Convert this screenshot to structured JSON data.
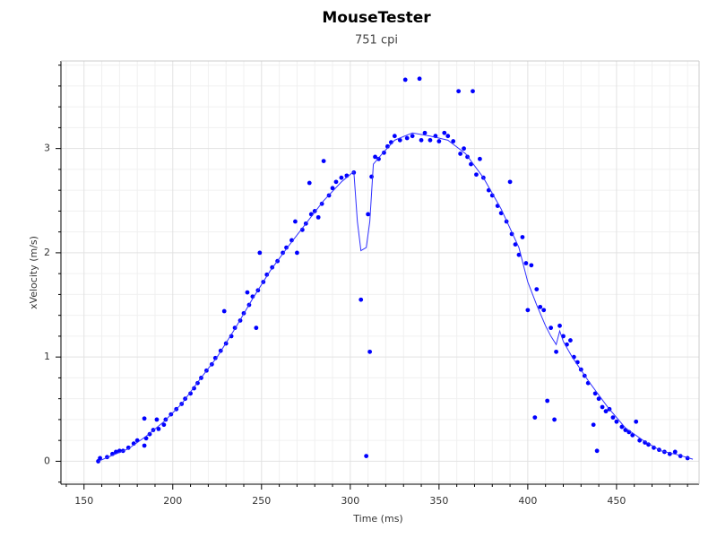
{
  "chart_data": {
    "type": "scatter",
    "title": "MouseTester",
    "subtitle": "751 cpi",
    "x_label": "Time (ms)",
    "y_label": "xVelocity (m/s)",
    "xlim": [
      137,
      496.5
    ],
    "ylim": [
      -0.22,
      3.84
    ],
    "xticks": [
      150,
      200,
      250,
      300,
      350,
      400,
      450
    ],
    "yticks": [
      0,
      1,
      2,
      3
    ],
    "xminorticks": [
      140,
      160,
      170,
      180,
      190,
      210,
      220,
      230,
      240,
      260,
      270,
      280,
      290,
      310,
      320,
      330,
      340,
      360,
      370,
      380,
      390,
      410,
      420,
      430,
      440,
      460,
      470,
      480,
      490
    ],
    "yminorticks": [
      -0.2,
      0.2,
      0.4,
      0.6,
      0.8,
      1.2,
      1.4,
      1.6,
      1.8,
      2.2,
      2.4,
      2.6,
      2.8,
      3.2,
      3.4,
      3.6,
      3.8
    ],
    "grid": true,
    "series": [
      {
        "mode": "markers",
        "color": "#0000ff",
        "x": [
          158,
          159,
          163,
          166,
          168,
          170,
          172,
          175,
          178,
          180,
          184,
          184,
          185,
          187,
          189,
          191,
          192,
          195,
          196,
          199,
          202,
          205,
          207,
          210,
          212,
          214,
          216,
          219,
          222,
          224,
          227,
          229,
          230,
          233,
          235,
          238,
          240,
          242,
          243,
          245,
          247,
          248,
          249,
          251,
          253,
          256,
          259,
          262,
          264,
          267,
          269,
          270,
          273,
          275,
          277,
          278,
          280,
          282,
          284,
          285,
          288,
          290,
          292,
          295,
          298,
          302,
          306,
          309,
          310,
          311,
          312,
          314,
          316,
          319,
          321,
          323,
          325,
          328,
          331,
          332,
          335,
          339,
          340,
          342,
          345,
          348,
          350,
          353,
          355,
          358,
          361,
          362,
          364,
          366,
          368,
          369,
          371,
          373,
          375,
          378,
          380,
          383,
          385,
          388,
          390,
          391,
          393,
          395,
          397,
          399,
          400,
          402,
          404,
          405,
          407,
          409,
          411,
          413,
          415,
          416,
          418,
          420,
          422,
          424,
          426,
          428,
          430,
          432,
          434,
          437,
          438,
          439,
          440,
          442,
          444,
          446,
          448,
          450,
          453,
          455,
          457,
          459,
          461,
          463,
          466,
          468,
          471,
          474,
          477,
          480,
          483,
          486,
          490
        ],
        "values": [
          0,
          0.03,
          0.04,
          0.07,
          0.09,
          0.1,
          0.1,
          0.13,
          0.17,
          0.2,
          0.41,
          0.15,
          0.22,
          0.26,
          0.3,
          0.4,
          0.31,
          0.35,
          0.4,
          0.45,
          0.5,
          0.55,
          0.6,
          0.65,
          0.7,
          0.75,
          0.8,
          0.87,
          0.93,
          0.99,
          1.06,
          1.44,
          1.13,
          1.2,
          1.28,
          1.35,
          1.42,
          1.62,
          1.5,
          1.58,
          1.28,
          1.64,
          2.0,
          1.72,
          1.79,
          1.86,
          1.92,
          2.0,
          2.05,
          2.12,
          2.3,
          2.0,
          2.22,
          2.28,
          2.67,
          2.37,
          2.4,
          2.34,
          2.47,
          2.88,
          2.55,
          2.62,
          2.68,
          2.72,
          2.74,
          2.77,
          1.55,
          0.05,
          2.37,
          1.05,
          2.73,
          2.92,
          2.9,
          2.96,
          3.02,
          3.06,
          3.12,
          3.08,
          3.66,
          3.1,
          3.12,
          3.67,
          3.08,
          3.15,
          3.08,
          3.12,
          3.07,
          3.15,
          3.12,
          3.07,
          3.55,
          2.95,
          3.0,
          2.92,
          2.85,
          3.55,
          2.75,
          2.9,
          2.72,
          2.6,
          2.55,
          2.45,
          2.38,
          2.3,
          2.68,
          2.18,
          2.08,
          1.98,
          2.15,
          1.9,
          1.45,
          1.88,
          0.42,
          1.65,
          1.48,
          1.45,
          0.58,
          1.28,
          0.4,
          1.05,
          1.3,
          1.2,
          1.12,
          1.16,
          1.0,
          0.95,
          0.88,
          0.82,
          0.75,
          0.35,
          0.65,
          0.1,
          0.6,
          0.52,
          0.48,
          0.5,
          0.42,
          0.38,
          0.33,
          0.3,
          0.28,
          0.25,
          0.38,
          0.2,
          0.18,
          0.16,
          0.13,
          0.11,
          0.09,
          0.07,
          0.09,
          0.05,
          0.03
        ]
      },
      {
        "mode": "lines",
        "color": "#3030ff",
        "x": [
          158,
          165,
          175,
          185,
          195,
          205,
          215,
          225,
          235,
          245,
          255,
          265,
          275,
          285,
          295,
          302,
          304,
          306,
          309,
          311,
          313,
          318,
          325,
          335,
          345,
          355,
          365,
          375,
          385,
          395,
          400,
          405,
          410,
          413,
          416,
          418,
          420,
          425,
          435,
          445,
          455,
          465,
          475,
          485,
          493
        ],
        "values": [
          0,
          0.05,
          0.12,
          0.24,
          0.38,
          0.55,
          0.78,
          1.0,
          1.27,
          1.56,
          1.83,
          2.06,
          2.28,
          2.5,
          2.68,
          2.78,
          2.3,
          2.02,
          2.05,
          2.3,
          2.85,
          2.95,
          3.08,
          3.15,
          3.12,
          3.08,
          2.95,
          2.72,
          2.42,
          2.05,
          1.72,
          1.5,
          1.3,
          1.2,
          1.12,
          1.25,
          1.15,
          1.0,
          0.75,
          0.52,
          0.32,
          0.2,
          0.1,
          0.06,
          0.02
        ]
      }
    ]
  }
}
